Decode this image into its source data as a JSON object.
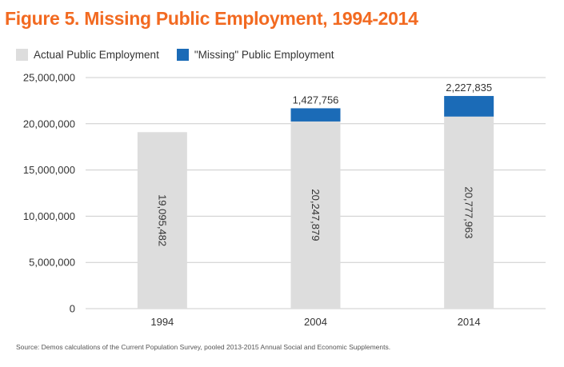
{
  "title": "Figure 5. Missing Public Employment, 1994-2014",
  "legend": {
    "actual": "Actual Public Employment",
    "missing": "\"Missing\" Public Employment"
  },
  "colors": {
    "title": "#f26a21",
    "actual": "#dddddd",
    "missing": "#1b6bb7",
    "grid": "#cccccc",
    "text": "#333333"
  },
  "source": "Source: Demos calculations of the Current Population Survey, pooled 2013-2015 Annual Social and Economic Supplements.",
  "chart_data": {
    "type": "bar",
    "stacked": true,
    "categories": [
      "1994",
      "2004",
      "2014"
    ],
    "series": [
      {
        "name": "Actual Public Employment",
        "values": [
          19095482,
          20247879,
          20777963
        ],
        "labels": [
          "19,095,482",
          "20,247,879",
          "20,777,963"
        ],
        "label_position": "inside-rotated"
      },
      {
        "name": "\"Missing\" Public Employment",
        "values": [
          0,
          1427756,
          2227835
        ],
        "labels": [
          "",
          "1,427,756",
          "2,227,835"
        ],
        "label_position": "above"
      }
    ],
    "y_ticks": [
      0,
      5000000,
      10000000,
      15000000,
      20000000,
      25000000
    ],
    "y_tick_labels": [
      "0",
      "5,000,000",
      "10,000,000",
      "15,000,000",
      "20,000,000",
      "25,000,000"
    ],
    "ylim": [
      0,
      25000000
    ],
    "grid": true,
    "legend_position": "top-left",
    "xlabel": "",
    "ylabel": ""
  }
}
